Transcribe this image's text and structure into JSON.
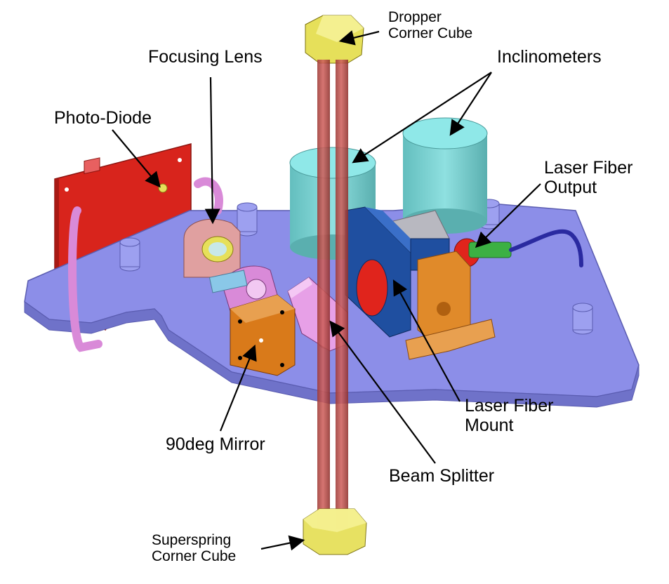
{
  "labels": {
    "dropper_line1": "Dropper",
    "dropper_line2": "Corner Cube",
    "focusing_lens": "Focusing Lens",
    "inclinometers": "Inclinometers",
    "photo_diode": "Photo-Diode",
    "laser_fiber_output_line1": "Laser Fiber",
    "laser_fiber_output_line2": "Output",
    "laser_fiber_mount_line1": "Laser Fiber",
    "laser_fiber_mount_line2": "Mount",
    "mirror_90deg": "90deg Mirror",
    "beam_splitter": "Beam Splitter",
    "superspring_line1": "Superspring",
    "superspring_line2": "Corner Cube"
  },
  "colors": {
    "base_plate": "#8C8EE8",
    "base_plate_edge": "#6F72C9",
    "beam_tube": "#C0504D",
    "corner_cube": "#E6E05A",
    "inclinometer": "#7ED6D6",
    "photo_diode_board": "#D8241C",
    "handle": "#D98AD8",
    "lens_mount": "#E0A0A0",
    "fiber_mount": "#1F4FA0",
    "fiber_output_bracket": "#E08A2A",
    "mirror_block": "#D97A1A",
    "beam_splitter": "#E7A0E7",
    "fiber_cable": "#2A2AA0",
    "fiber_connector_green": "#3CB043"
  }
}
